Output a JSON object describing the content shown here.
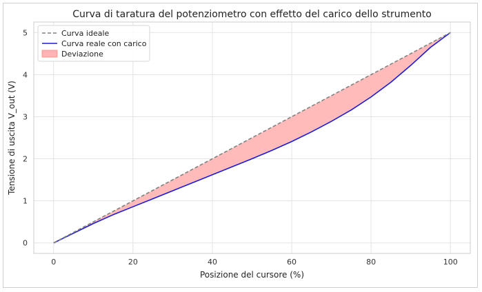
{
  "chart_data": {
    "type": "line",
    "title": "Curva di taratura del potenziometro con effetto del carico dello strumento",
    "xlabel": "Posizione del cursore (%)",
    "ylabel": "Tensione di uscita V_out (V)",
    "xlim": [
      -5,
      105
    ],
    "ylim": [
      -0.25,
      5.25
    ],
    "xticks": [
      0,
      20,
      40,
      60,
      80,
      100
    ],
    "yticks": [
      0,
      1,
      2,
      3,
      4,
      5
    ],
    "grid": true,
    "legend_position": "top-left",
    "x": [
      0,
      5,
      10,
      15,
      20,
      25,
      30,
      35,
      40,
      45,
      50,
      55,
      60,
      65,
      70,
      75,
      80,
      85,
      90,
      95,
      100
    ],
    "series": [
      {
        "name": "Curva ideale",
        "style": "dashed",
        "color": "#808080",
        "values": [
          0,
          0.25,
          0.5,
          0.75,
          1.0,
          1.25,
          1.5,
          1.75,
          2.0,
          2.25,
          2.5,
          2.75,
          3.0,
          3.25,
          3.5,
          3.75,
          4.0,
          4.25,
          4.5,
          4.75,
          5.0
        ]
      },
      {
        "name": "Curva reale con carico",
        "style": "solid",
        "color": "#1a1adb",
        "values": [
          0,
          0.23,
          0.46,
          0.67,
          0.86,
          1.05,
          1.24,
          1.43,
          1.62,
          1.81,
          2.0,
          2.2,
          2.41,
          2.64,
          2.89,
          3.16,
          3.47,
          3.82,
          4.22,
          4.65,
          5.0
        ]
      }
    ],
    "fill_between": {
      "name": "Deviazione",
      "color": "#ffb3b3",
      "edge_color": "#ff8a8a",
      "between": [
        "Curva ideale",
        "Curva reale con carico"
      ]
    }
  }
}
